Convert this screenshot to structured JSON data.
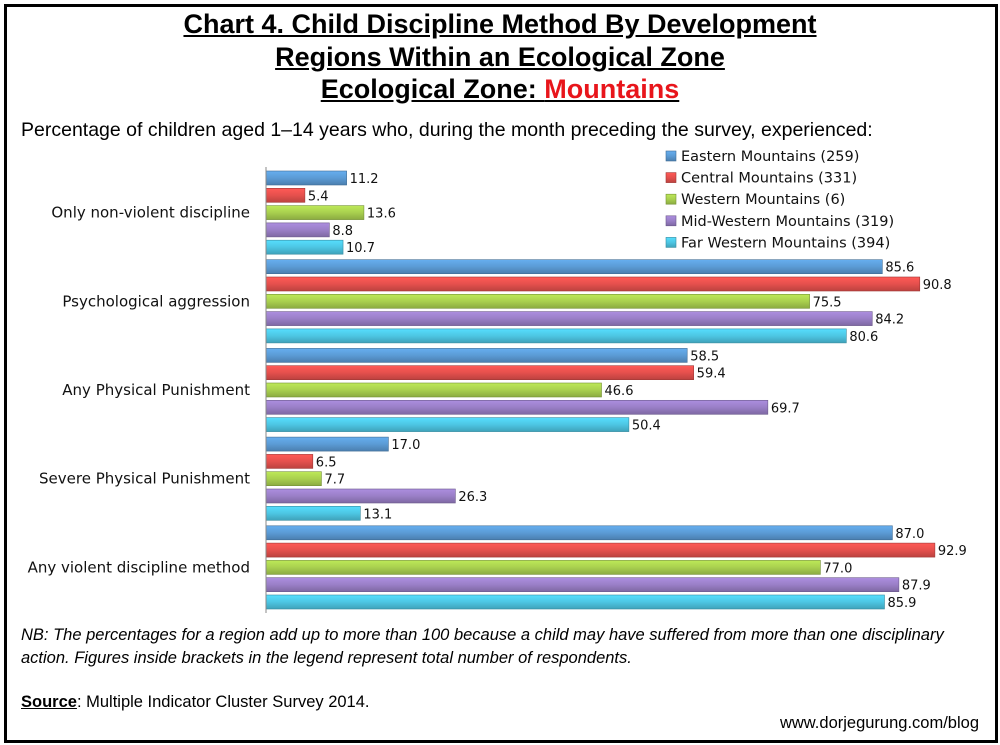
{
  "title": {
    "line1": "Chart 4. Child Discipline Method By Development",
    "line2": "Regions Within an Ecological Zone",
    "line3_prefix": "Ecological Zone: ",
    "line3_highlight": "Mountains"
  },
  "subtitle": "Percentage of children aged 1–14 years who, during the month preceding the survey, experienced:",
  "note": "NB: The percentages for a region add up to more than 100 because a child may have suffered from more than one disciplinary action. Figures inside brackets in the legend represent total number of respondents.",
  "source": {
    "label": "Source",
    "text": ": Multiple Indicator Cluster Survey 2014."
  },
  "website": "www.dorjegurung.com/blog",
  "chart_data": {
    "type": "bar",
    "orientation": "horizontal",
    "categories": [
      "Only non-violent discipline",
      "Psychological aggression",
      "Any Physical Punishment",
      "Severe Physical Punishment",
      "Any violent discipline method"
    ],
    "series": [
      {
        "name": "Eastern Mountains (259)",
        "color": "#5b9bd5",
        "values": [
          11.2,
          85.6,
          58.5,
          17.0,
          87.0
        ]
      },
      {
        "name": "Central Mountains (331)",
        "color": "#e5504d",
        "values": [
          5.4,
          90.8,
          59.4,
          6.5,
          92.9
        ]
      },
      {
        "name": "Western Mountains (6)",
        "color": "#a9d04f",
        "values": [
          13.6,
          75.5,
          46.6,
          7.7,
          77.0
        ]
      },
      {
        "name": "Mid-Western Mountains (319)",
        "color": "#9a7fc7",
        "values": [
          8.8,
          84.2,
          69.7,
          26.3,
          87.9
        ]
      },
      {
        "name": "Far Western Mountains (394)",
        "color": "#4dc6e3",
        "values": [
          10.7,
          80.6,
          50.4,
          13.1,
          85.9
        ]
      }
    ],
    "value_format": "one decimal",
    "legend_position": "top-right",
    "grid": false
  }
}
